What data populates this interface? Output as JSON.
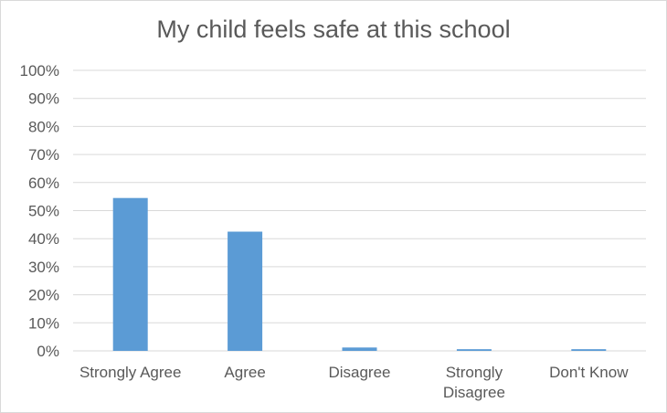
{
  "chart_data": {
    "type": "bar",
    "title": "My child feels safe at this school",
    "categories": [
      [
        "Strongly Agree"
      ],
      [
        "Agree"
      ],
      [
        "Disagree"
      ],
      [
        "Strongly",
        "Disagree"
      ],
      [
        "Don't Know"
      ]
    ],
    "values": [
      54.5,
      42.5,
      1.2,
      0.6,
      0.6
    ],
    "ylim": [
      0,
      100
    ],
    "ytick_step": 10,
    "ytick_labels": [
      "0%",
      "10%",
      "20%",
      "30%",
      "40%",
      "50%",
      "60%",
      "70%",
      "80%",
      "90%",
      "100%"
    ],
    "grid": true,
    "bar_color": "#5b9bd5",
    "grid_color": "#d9d9d9",
    "text_color": "#595959"
  }
}
